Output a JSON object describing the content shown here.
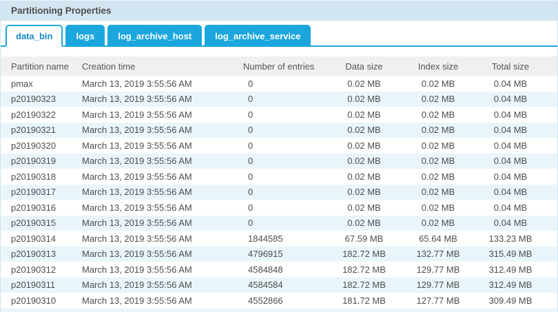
{
  "panel": {
    "title": "Partitioning Properties"
  },
  "tabs": [
    {
      "label": "data_bin",
      "active": true
    },
    {
      "label": "logs",
      "active": false
    },
    {
      "label": "log_archive_host",
      "active": false
    },
    {
      "label": "log_archive_service",
      "active": false
    }
  ],
  "table": {
    "columns": [
      "Partition name",
      "Creation time",
      "Number of entries",
      "Data size",
      "Index size",
      "Total size"
    ],
    "rows": [
      [
        "pmax",
        "March 13, 2019 3:55:56 AM",
        "0",
        "0.02 MB",
        "0.02 MB",
        "0.04 MB"
      ],
      [
        "p20190323",
        "March 13, 2019 3:55:56 AM",
        "0",
        "0.02 MB",
        "0.02 MB",
        "0.04 MB"
      ],
      [
        "p20190322",
        "March 13, 2019 3:55:56 AM",
        "0",
        "0.02 MB",
        "0.02 MB",
        "0.04 MB"
      ],
      [
        "p20190321",
        "March 13, 2019 3:55:56 AM",
        "0",
        "0.02 MB",
        "0.02 MB",
        "0.04 MB"
      ],
      [
        "p20190320",
        "March 13, 2019 3:55:56 AM",
        "0",
        "0.02 MB",
        "0.02 MB",
        "0.04 MB"
      ],
      [
        "p20190319",
        "March 13, 2019 3:55:56 AM",
        "0",
        "0.02 MB",
        "0.02 MB",
        "0.04 MB"
      ],
      [
        "p20190318",
        "March 13, 2019 3:55:56 AM",
        "0",
        "0.02 MB",
        "0.02 MB",
        "0.04 MB"
      ],
      [
        "p20190317",
        "March 13, 2019 3:55:56 AM",
        "0",
        "0.02 MB",
        "0.02 MB",
        "0.04 MB"
      ],
      [
        "p20190316",
        "March 13, 2019 3:55:56 AM",
        "0",
        "0.02 MB",
        "0.02 MB",
        "0.04 MB"
      ],
      [
        "p20190315",
        "March 13, 2019 3:55:56 AM",
        "0",
        "0.02 MB",
        "0.02 MB",
        "0.04 MB"
      ],
      [
        "p20190314",
        "March 13, 2019 3:55:56 AM",
        "1844585",
        "67.59 MB",
        "65.64 MB",
        "133.23 MB"
      ],
      [
        "p20190313",
        "March 13, 2019 3:55:56 AM",
        "4796915",
        "182.72 MB",
        "132.77 MB",
        "315.49 MB"
      ],
      [
        "p20190312",
        "March 13, 2019 3:55:56 AM",
        "4584848",
        "182.72 MB",
        "129.77 MB",
        "312.49 MB"
      ],
      [
        "p20190311",
        "March 13, 2019 3:55:56 AM",
        "4584584",
        "182.72 MB",
        "129.77 MB",
        "312.49 MB"
      ],
      [
        "p20190310",
        "March 13, 2019 3:55:56 AM",
        "4552866",
        "181.72 MB",
        "127.77 MB",
        "309.49 MB"
      ]
    ]
  },
  "colors": {
    "accent": "#1ba7de",
    "accent_text": "#1489cb",
    "title_bar_bg": "#d2e6f1",
    "header_row_bg": "#f0f0f0",
    "alt_row_bg": "#e9f5fb",
    "text": "#4d4d4d",
    "panel_border": "#cfe4f0"
  }
}
